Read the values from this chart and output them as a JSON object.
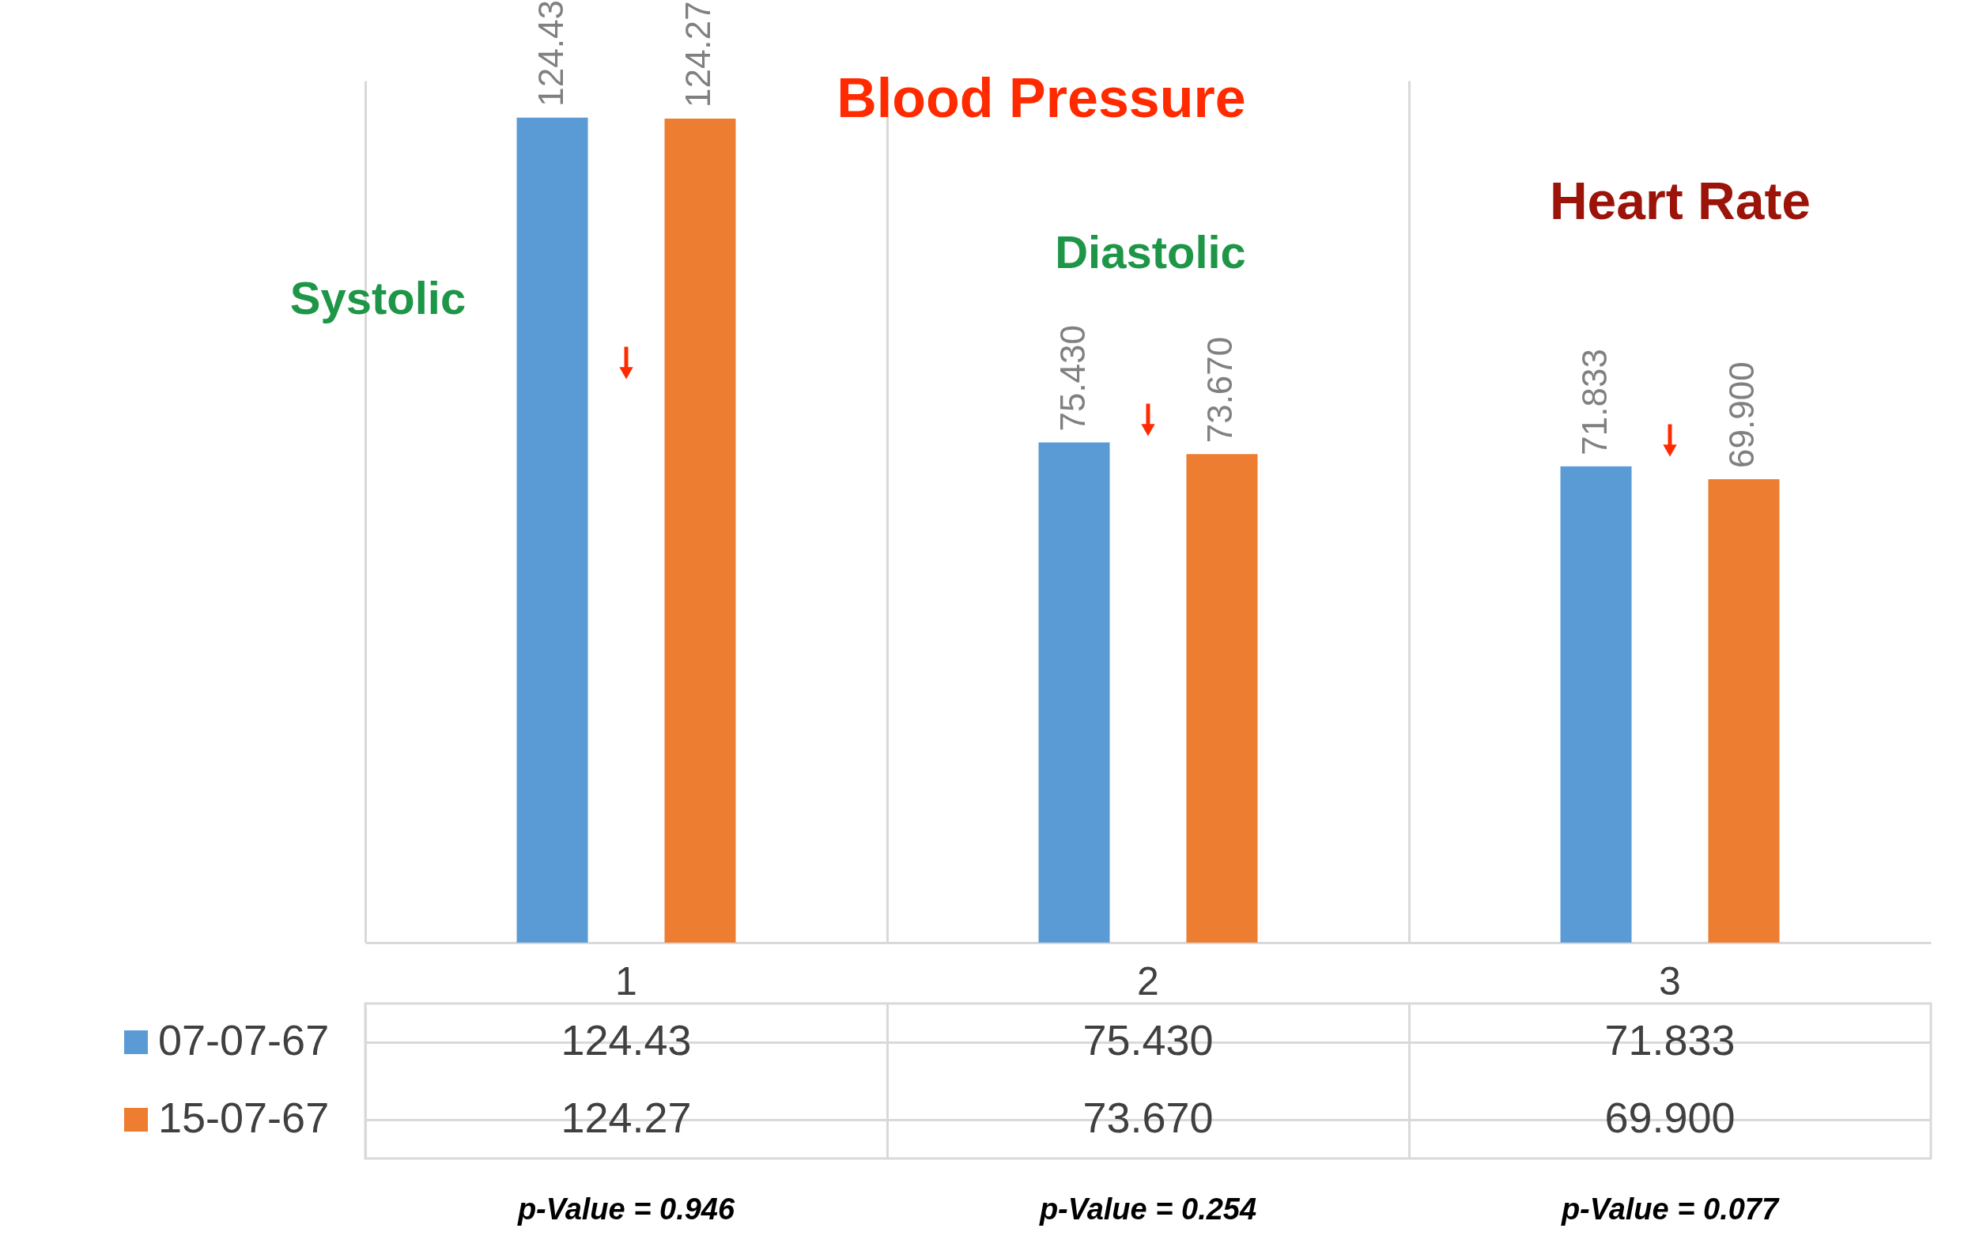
{
  "chart_data": {
    "type": "bar",
    "title": "Blood Pressure",
    "categories": [
      "1",
      "2",
      "3"
    ],
    "series": [
      {
        "name": "07-07-67",
        "color": "#5b9bd5",
        "values": [
          124.43,
          75.43,
          71.833
        ],
        "value_labels": [
          "124.43",
          "75.430",
          "71.833"
        ]
      },
      {
        "name": "15-07-67",
        "color": "#ed7d31",
        "values": [
          124.27,
          73.67,
          69.9
        ],
        "value_labels": [
          "124.27",
          "73.670",
          "69.900"
        ]
      }
    ],
    "annotations": [
      "Systolic",
      "Diastolic",
      "Heart Rate",
      "p-Value = 0.946",
      "p-Value = 0.254",
      "p-Value = 0.077"
    ],
    "grid": "x",
    "legend": "bottom"
  }
}
